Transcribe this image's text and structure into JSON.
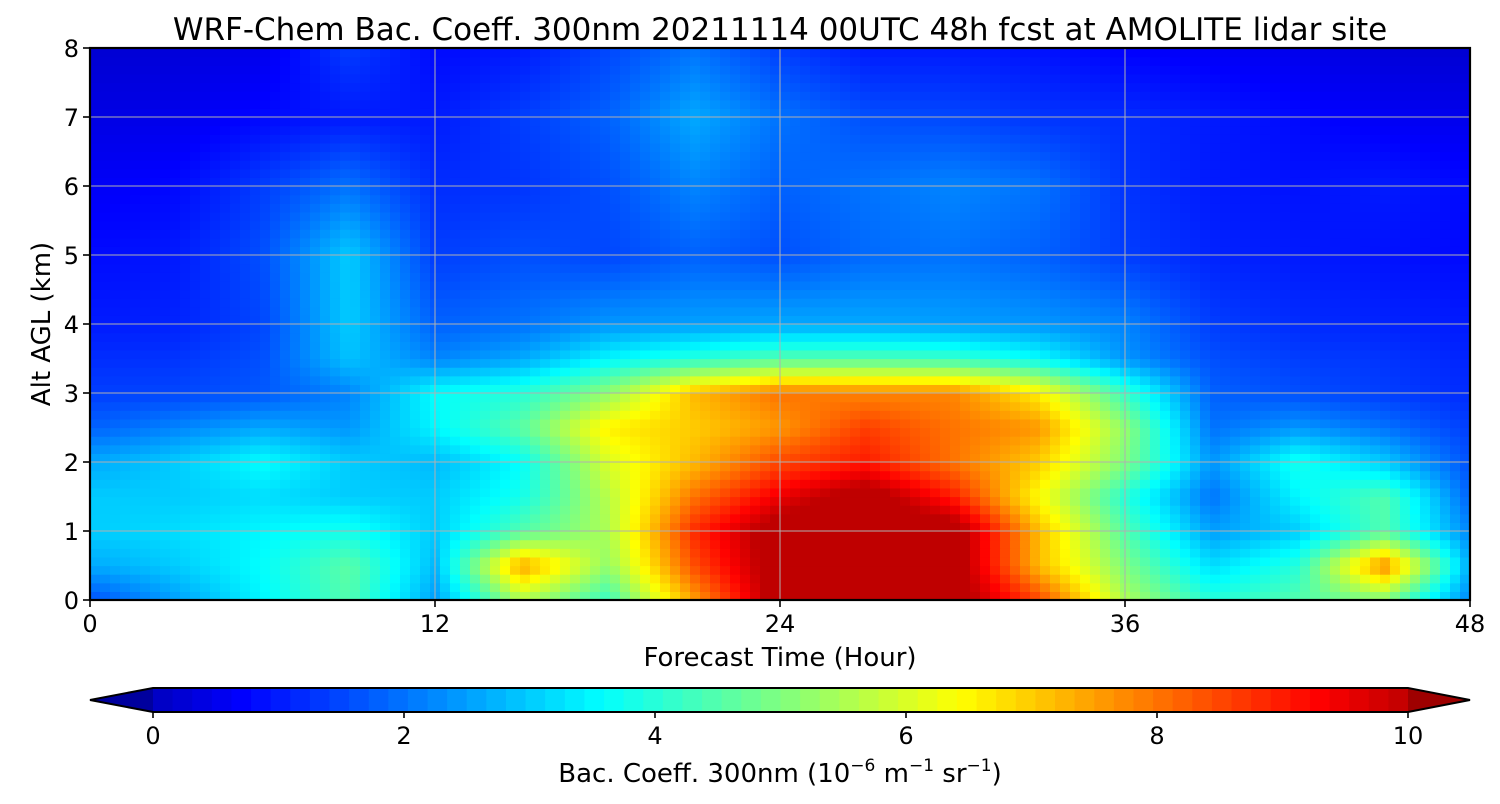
{
  "chart_data": {
    "type": "heatmap",
    "title": "WRF-Chem Bac. Coeff. 300nm  20211114 00UTC 48h fcst at AMOLITE lidar site",
    "xlabel": "Forecast Time (Hour)",
    "ylabel": "Alt AGL (km)",
    "xlim": [
      0,
      48
    ],
    "ylim": [
      0,
      8
    ],
    "x_ticks": [
      "0",
      "12",
      "24",
      "36",
      "48"
    ],
    "y_ticks": [
      "0",
      "1",
      "2",
      "3",
      "4",
      "5",
      "6",
      "7",
      "8"
    ],
    "grid": true,
    "x": [
      0,
      3,
      6,
      9,
      12,
      15,
      18,
      21,
      24,
      27,
      30,
      33,
      36,
      39,
      42,
      45,
      48
    ],
    "y": [
      0,
      0.5,
      1,
      1.5,
      2,
      2.5,
      3,
      3.5,
      4,
      5,
      6,
      7,
      8
    ],
    "z": [
      [
        1.6,
        2.5,
        3.5,
        4.5,
        2.5,
        5.5,
        4.2,
        7.5,
        10.5,
        10.5,
        10.5,
        8.5,
        5.5,
        4.0,
        4.5,
        5.0,
        2.2
      ],
      [
        2.6,
        3.0,
        3.6,
        4.6,
        2.8,
        7.5,
        5.2,
        8.4,
        10.5,
        10.5,
        10.5,
        7.2,
        5.0,
        3.2,
        4.0,
        7.8,
        2.6
      ],
      [
        3.0,
        3.2,
        3.5,
        3.8,
        3.0,
        4.5,
        5.5,
        8.8,
        10.5,
        10.5,
        10.5,
        7.2,
        4.5,
        2.5,
        3.0,
        4.5,
        2.2
      ],
      [
        3.0,
        3.0,
        3.2,
        3.0,
        3.0,
        3.8,
        5.6,
        8.0,
        9.5,
        10.5,
        9.0,
        6.4,
        4.0,
        2.0,
        3.5,
        4.5,
        1.8
      ],
      [
        2.6,
        3.0,
        3.6,
        3.0,
        2.8,
        3.6,
        6.0,
        7.2,
        8.5,
        9.0,
        8.0,
        7.0,
        5.0,
        2.4,
        3.8,
        3.0,
        1.6
      ],
      [
        1.8,
        2.2,
        2.6,
        2.4,
        3.5,
        4.6,
        6.6,
        7.0,
        7.6,
        8.6,
        8.0,
        7.6,
        5.2,
        2.0,
        2.4,
        2.0,
        1.4
      ],
      [
        1.4,
        1.5,
        1.7,
        2.2,
        3.6,
        4.0,
        5.2,
        7.2,
        8.0,
        7.8,
        7.8,
        6.6,
        4.2,
        1.8,
        1.6,
        1.4,
        1.2
      ],
      [
        1.2,
        1.3,
        1.6,
        2.9,
        2.2,
        2.6,
        3.5,
        4.0,
        4.5,
        4.5,
        4.2,
        3.6,
        2.4,
        1.6,
        1.4,
        1.3,
        1.1
      ],
      [
        1.0,
        1.1,
        1.5,
        3.0,
        1.8,
        2.0,
        2.4,
        2.5,
        2.6,
        2.6,
        2.5,
        2.4,
        2.2,
        1.4,
        1.2,
        1.1,
        1.0
      ],
      [
        0.8,
        1.0,
        1.6,
        3.0,
        1.4,
        1.6,
        1.5,
        1.8,
        1.6,
        1.9,
        2.0,
        1.8,
        1.4,
        1.1,
        1.0,
        0.9,
        0.8
      ],
      [
        0.6,
        0.8,
        1.4,
        2.0,
        1.2,
        1.3,
        1.6,
        2.2,
        1.8,
        2.0,
        2.2,
        2.0,
        1.3,
        1.0,
        0.9,
        1.0,
        0.8
      ],
      [
        0.4,
        0.5,
        0.8,
        1.0,
        1.0,
        1.4,
        1.8,
        2.6,
        2.0,
        1.6,
        1.5,
        1.3,
        1.2,
        1.0,
        0.8,
        0.6,
        0.5
      ],
      [
        0.2,
        0.3,
        0.5,
        1.4,
        0.8,
        1.0,
        1.5,
        2.0,
        1.4,
        1.0,
        1.0,
        0.9,
        0.7,
        0.6,
        0.5,
        0.3,
        0.2
      ]
    ],
    "colorbar": {
      "label_main": "Bac. Coeff. 300nm  (10",
      "label_exp1": "−6",
      "label_mid": " m",
      "label_exp2": "−1",
      "label_mid2": " sr",
      "label_exp3": "−1",
      "label_end": ")",
      "ticks": [
        "0",
        "2",
        "4",
        "6",
        "8",
        "10"
      ],
      "range": [
        0,
        10
      ],
      "extend": "both",
      "colormap": "jet"
    }
  }
}
